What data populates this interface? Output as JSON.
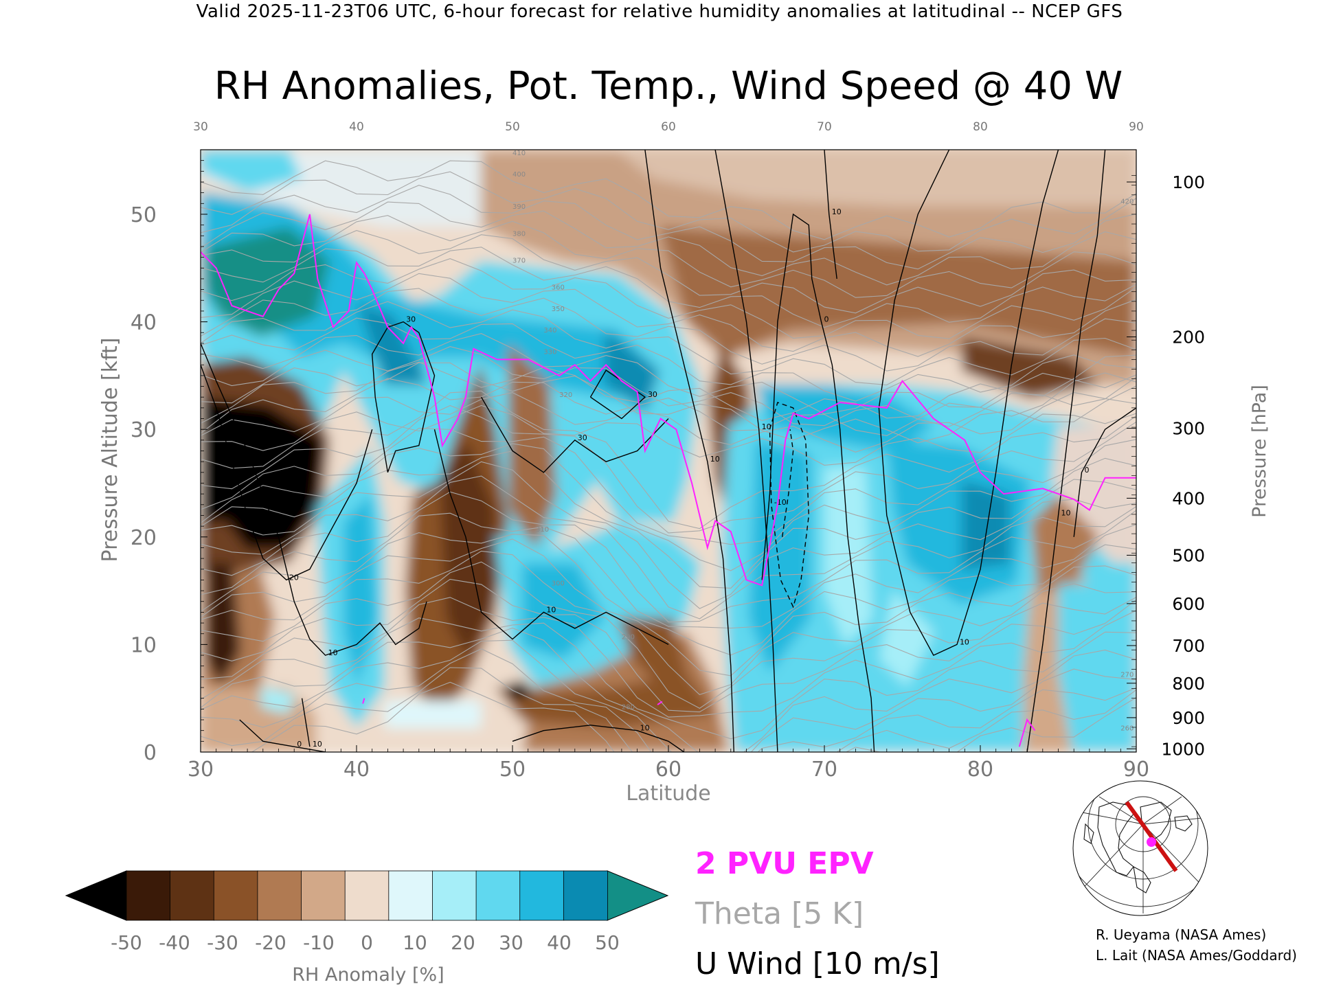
{
  "header": {
    "valid_line": "Valid 2025-11-23T06 UTC, 6-hour forecast for relative humidity anomalies at latitudinal -- NCEP GFS"
  },
  "chart_data": {
    "type": "heatmap",
    "title": "RH Anomalies, Pot. Temp., Wind Speed @ 40 W",
    "xlabel": "Latitude",
    "ylabel_left": "Pressure Altitude [kft]",
    "ylabel_right": "Pressure [hPa]",
    "xlim": [
      30,
      90
    ],
    "ylim": [
      0,
      56
    ],
    "x_ticks": [
      "30",
      "40",
      "50",
      "60",
      "70",
      "80",
      "90"
    ],
    "x_ticks_top": [
      "30",
      "40",
      "50",
      "60",
      "70",
      "80",
      "90"
    ],
    "y_ticks": [
      "0",
      "10",
      "20",
      "30",
      "40",
      "50"
    ],
    "pressure_ticks": [
      {
        "label": "100",
        "kft": 53.0
      },
      {
        "label": "200",
        "kft": 38.6
      },
      {
        "label": "300",
        "kft": 30.1
      },
      {
        "label": "400",
        "kft": 23.6
      },
      {
        "label": "500",
        "kft": 18.3
      },
      {
        "label": "600",
        "kft": 13.8
      },
      {
        "label": "700",
        "kft": 9.9
      },
      {
        "label": "800",
        "kft": 6.4
      },
      {
        "label": "900",
        "kft": 3.2
      },
      {
        "label": "1000",
        "kft": 0.3
      }
    ],
    "colorbar": {
      "label": "RH Anomaly [%]",
      "ticks": [
        "-50",
        "-40",
        "-30",
        "-20",
        "-10",
        "0",
        "10",
        "20",
        "30",
        "40",
        "50"
      ],
      "colors": [
        "#3a1a08",
        "#5e3214",
        "#8a5228",
        "#b07a52",
        "#d2a888",
        "#eedccc",
        "#dff7fb",
        "#a6eef8",
        "#60d8ef",
        "#22b8de",
        "#0a8bb2"
      ],
      "under_color": "#000000",
      "over_color": "#138f86"
    },
    "legend": [
      {
        "label": "2 PVU EPV",
        "color": "#ff22ff"
      },
      {
        "label": "Theta [5 K]",
        "color": "#a8a8a8"
      },
      {
        "label": "U Wind [10 m/s]",
        "color": "#000000"
      }
    ],
    "epv_2pvu_line": [
      [
        30,
        46.5
      ],
      [
        31,
        45
      ],
      [
        32,
        41.5
      ],
      [
        33,
        41
      ],
      [
        34,
        40.5
      ],
      [
        35,
        43
      ],
      [
        36,
        44.5
      ],
      [
        37,
        50
      ],
      [
        37.5,
        44
      ],
      [
        38.5,
        39.5
      ],
      [
        39.5,
        41
      ],
      [
        40,
        45.5
      ],
      [
        40.5,
        44.5
      ],
      [
        41,
        43
      ],
      [
        42,
        39.5
      ],
      [
        43,
        38
      ],
      [
        43.5,
        39.5
      ],
      [
        44,
        38.5
      ],
      [
        45,
        33
      ],
      [
        45.5,
        28.5
      ],
      [
        46.5,
        31
      ],
      [
        47,
        33
      ],
      [
        47.5,
        37.5
      ],
      [
        49,
        36.5
      ],
      [
        51,
        36.5
      ],
      [
        53,
        35
      ],
      [
        54,
        36
      ],
      [
        55,
        34.5
      ],
      [
        56,
        36
      ],
      [
        57,
        34.5
      ],
      [
        58,
        33.5
      ],
      [
        58.5,
        28
      ],
      [
        59.5,
        31
      ],
      [
        60.5,
        30
      ],
      [
        61.5,
        25
      ],
      [
        62,
        22
      ],
      [
        62.5,
        19
      ],
      [
        63,
        21.5
      ],
      [
        64,
        20.5
      ],
      [
        65,
        16
      ],
      [
        66,
        15.5
      ],
      [
        67,
        23
      ],
      [
        67.5,
        29
      ],
      [
        68,
        31.5
      ],
      [
        69,
        31
      ],
      [
        71,
        32.5
      ],
      [
        74,
        32
      ],
      [
        75,
        34.5
      ],
      [
        77,
        31
      ],
      [
        79,
        29
      ],
      [
        80,
        26
      ],
      [
        81.5,
        24
      ],
      [
        84,
        24.5
      ],
      [
        85,
        24
      ],
      [
        86,
        23.5
      ],
      [
        87,
        22.5
      ],
      [
        88,
        25.5
      ],
      [
        90,
        25.5
      ]
    ],
    "epv_low_segments": [
      [
        [
          82.5,
          0.5
        ],
        [
          83,
          3
        ],
        [
          83.5,
          2
        ]
      ],
      [
        [
          40.4,
          4.5
        ],
        [
          40.5,
          5
        ]
      ],
      [
        [
          59.3,
          4.4
        ],
        [
          59.6,
          4.7
        ]
      ]
    ],
    "wind_contours": [
      {
        "label": "10",
        "points": [
          [
            30,
            38
          ],
          [
            31,
            34.5
          ],
          [
            33,
            28
          ],
          [
            35,
            20
          ],
          [
            36,
            14
          ],
          [
            37,
            10.5
          ],
          [
            38,
            9
          ],
          [
            40,
            10
          ],
          [
            41.5,
            12
          ],
          [
            42.5,
            10
          ],
          [
            44,
            11.5
          ],
          [
            44.5,
            14
          ]
        ]
      },
      {
        "label": "30",
        "points": [
          [
            42,
            26
          ],
          [
            42.5,
            28
          ],
          [
            44,
            28.5
          ],
          [
            45,
            35
          ],
          [
            44,
            39
          ],
          [
            43,
            40
          ],
          [
            42,
            39.5
          ],
          [
            41,
            37
          ],
          [
            41.2,
            33
          ],
          [
            42,
            26
          ]
        ]
      },
      {
        "label": "30",
        "points": [
          [
            48,
            33
          ],
          [
            50,
            28
          ],
          [
            52,
            26
          ],
          [
            54,
            29
          ],
          [
            56,
            27
          ],
          [
            58,
            28
          ],
          [
            60,
            31
          ]
        ]
      },
      {
        "label": "10",
        "points": [
          [
            45,
            30
          ],
          [
            46,
            24
          ],
          [
            47,
            20
          ],
          [
            48,
            13
          ],
          [
            50,
            10.5
          ],
          [
            52,
            13
          ],
          [
            54,
            11.5
          ],
          [
            56,
            13
          ],
          [
            58,
            11.5
          ],
          [
            60,
            10
          ]
        ]
      },
      {
        "label": "20",
        "points": [
          [
            30,
            36
          ],
          [
            31,
            32
          ],
          [
            32,
            27
          ],
          [
            33,
            22
          ],
          [
            34,
            18
          ],
          [
            35.5,
            16
          ],
          [
            37,
            17
          ],
          [
            38.5,
            21
          ],
          [
            40,
            25
          ],
          [
            41,
            30
          ]
        ]
      },
      {
        "label": "10",
        "points": [
          [
            36.5,
            5
          ],
          [
            37,
            0.5
          ]
        ]
      },
      {
        "label": "30",
        "points": [
          [
            55,
            33
          ],
          [
            57,
            31
          ],
          [
            58.5,
            33
          ],
          [
            56,
            35.5
          ],
          [
            55,
            33
          ]
        ]
      },
      {
        "label": "10",
        "points": [
          [
            58.5,
            56
          ],
          [
            59.5,
            45
          ],
          [
            61,
            36
          ],
          [
            62.5,
            27
          ],
          [
            63.5,
            18
          ],
          [
            64,
            8
          ],
          [
            64.2,
            0
          ]
        ]
      },
      {
        "label": "10",
        "points": [
          [
            63,
            56
          ],
          [
            64,
            48
          ],
          [
            65,
            40
          ],
          [
            65.8,
            30
          ],
          [
            66.3,
            20
          ],
          [
            66.7,
            10
          ],
          [
            67,
            0
          ]
        ]
      },
      {
        "label": "0",
        "points": [
          [
            66,
            16
          ],
          [
            66.5,
            24
          ],
          [
            67,
            40
          ],
          [
            68,
            50
          ],
          [
            69,
            49
          ],
          [
            69.2,
            44
          ],
          [
            69.8,
            40
          ],
          [
            70.5,
            36
          ],
          [
            71,
            30
          ],
          [
            71.5,
            20
          ],
          [
            72.2,
            12
          ],
          [
            73,
            5
          ],
          [
            73.2,
            0
          ]
        ]
      },
      {
        "label": "10",
        "points": [
          [
            70,
            56
          ],
          [
            70.3,
            50
          ],
          [
            70.8,
            44
          ]
        ]
      },
      {
        "label": "10",
        "points": [
          [
            78,
            56
          ],
          [
            76,
            50
          ],
          [
            74.5,
            42
          ],
          [
            73.5,
            32
          ],
          [
            74,
            22
          ],
          [
            75.5,
            13
          ],
          [
            77,
            9
          ],
          [
            78.5,
            10
          ],
          [
            80,
            17
          ],
          [
            81,
            26
          ],
          [
            82,
            36
          ],
          [
            83,
            44
          ],
          [
            84,
            51
          ],
          [
            85,
            56
          ]
        ]
      },
      {
        "label": "10",
        "points": [
          [
            88,
            56
          ],
          [
            87.5,
            48
          ],
          [
            86.5,
            40
          ],
          [
            86,
            34
          ],
          [
            85,
            22
          ],
          [
            84,
            10
          ],
          [
            83.2,
            2
          ],
          [
            83,
            0
          ]
        ]
      },
      {
        "label": "0",
        "points": [
          [
            90,
            32
          ],
          [
            88,
            30
          ],
          [
            86.5,
            26
          ],
          [
            86,
            20
          ]
        ]
      },
      {
        "label": "10",
        "points": [
          [
            50,
            1
          ],
          [
            52,
            2
          ],
          [
            55,
            2.5
          ],
          [
            58,
            2
          ],
          [
            60,
            1
          ],
          [
            61,
            0
          ]
        ]
      },
      {
        "label": "0",
        "points": [
          [
            32.5,
            3
          ],
          [
            34,
            1
          ],
          [
            36,
            0.5
          ],
          [
            38,
            0
          ]
        ]
      }
    ],
    "wind_dashed_contours": [
      {
        "label": "-10",
        "points": [
          [
            66.5,
            30
          ],
          [
            67,
            32.5
          ],
          [
            68,
            32
          ],
          [
            68.8,
            29
          ],
          [
            69,
            22
          ],
          [
            68.5,
            16
          ],
          [
            68,
            13.5
          ],
          [
            67.2,
            16
          ],
          [
            66.6,
            23
          ],
          [
            66.5,
            30
          ]
        ]
      },
      {
        "label": "",
        "points": [
          [
            67.3,
            20
          ],
          [
            67.7,
            24
          ],
          [
            68,
            28
          ],
          [
            67.8,
            30
          ]
        ]
      }
    ],
    "theta_contour_labels": [
      "410",
      "400",
      "390",
      "380",
      "370",
      "360",
      "350",
      "340",
      "330",
      "320",
      "310",
      "300",
      "290",
      "280",
      "270",
      "260",
      "420"
    ]
  },
  "colors": {
    "epv_magenta": "#ff22ff",
    "theta_gray": "#a8a8a8",
    "wind_black": "#000000"
  },
  "credits": {
    "line1": "R. Ueyama (NASA Ames)",
    "line2": "L. Lait (NASA Ames/Goddard)"
  },
  "inset_map": {
    "icon": "globe-map-icon",
    "track_color": "#cc1111",
    "marker_color": "#ff22ff"
  }
}
